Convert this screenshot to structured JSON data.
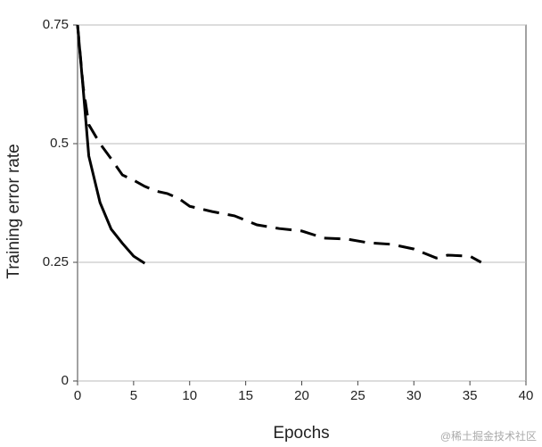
{
  "chart_data": {
    "type": "line",
    "xlabel": "Epochs",
    "ylabel": "Training error rate",
    "x": [
      0,
      0.5,
      1,
      2,
      3,
      4,
      5,
      6,
      7,
      8,
      9,
      10,
      12,
      14,
      16,
      18,
      20,
      22,
      24,
      26,
      28,
      30,
      32,
      33,
      35,
      36
    ],
    "series": [
      {
        "color": "#000000",
        "linestyle": "solid",
        "values": [
          0.75,
          0.615,
          0.474,
          0.376,
          0.32,
          0.29,
          0.263,
          0.248,
          null,
          null,
          null,
          null,
          null,
          null,
          null,
          null,
          null,
          null,
          null,
          null,
          null,
          null,
          null,
          null,
          null,
          null
        ]
      },
      {
        "color": "#000000",
        "linestyle": "dashed",
        "values": [
          0.75,
          0.62,
          0.54,
          0.5,
          0.468,
          0.434,
          0.423,
          0.41,
          0.4,
          0.395,
          0.385,
          0.368,
          0.357,
          0.348,
          0.329,
          0.321,
          0.316,
          0.301,
          0.299,
          0.291,
          0.288,
          0.278,
          0.259,
          0.265,
          0.263,
          0.25
        ]
      }
    ],
    "xlim": [
      0,
      40
    ],
    "xticks": [
      0,
      5,
      10,
      15,
      20,
      25,
      30,
      35,
      40
    ],
    "ylim": [
      0,
      0.75
    ],
    "yticks": [
      0,
      0.25,
      0.5,
      0.75
    ],
    "grid": true
  },
  "watermark": "@稀土掘金技术社区"
}
